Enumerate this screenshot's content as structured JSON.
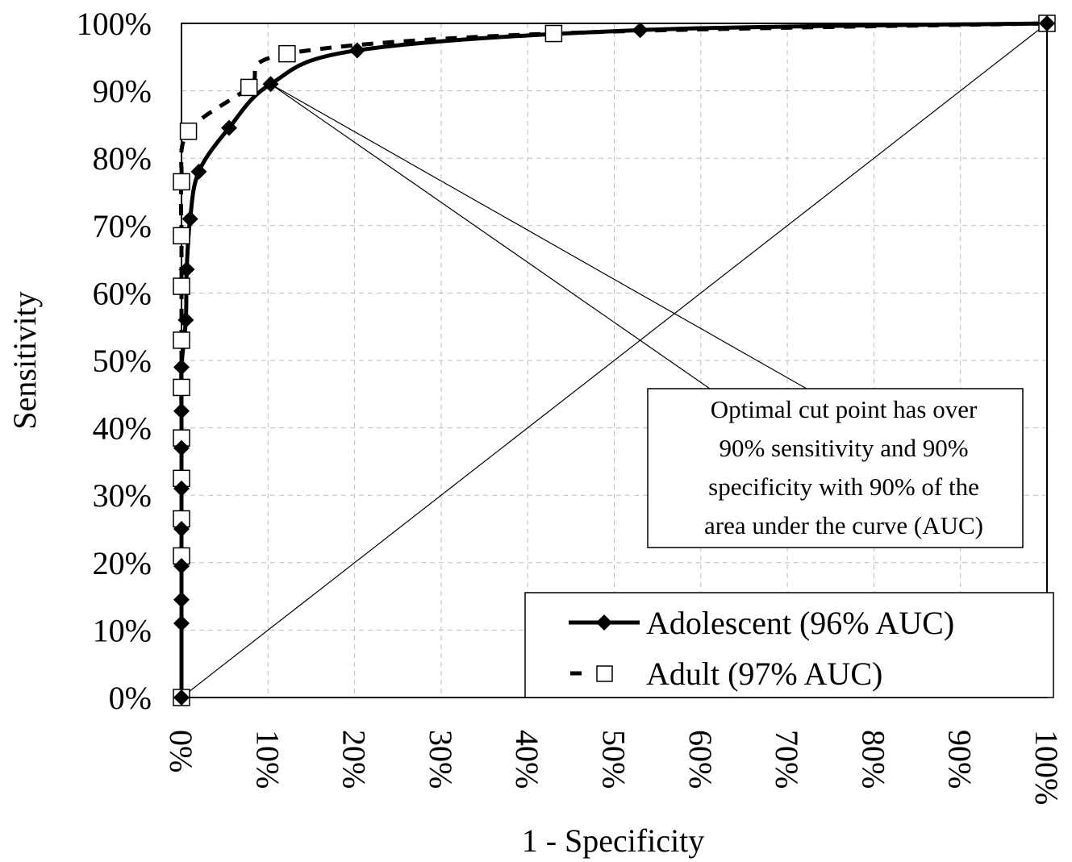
{
  "chart_data": {
    "type": "line",
    "xlabel": "1 - Specificity",
    "ylabel": "Sensitivity",
    "xlim": [
      0,
      100
    ],
    "ylim": [
      0,
      100
    ],
    "x_ticks": [
      "0%",
      "10%",
      "20%",
      "30%",
      "40%",
      "50%",
      "60%",
      "70%",
      "80%",
      "90%",
      "100%"
    ],
    "y_ticks": [
      "0%",
      "10%",
      "20%",
      "30%",
      "40%",
      "50%",
      "60%",
      "70%",
      "80%",
      "90%",
      "100%"
    ],
    "grid": true,
    "legend_position": "bottom-right",
    "series": [
      {
        "name": "Adolescent (96% AUC)",
        "style": "solid",
        "marker": "diamond-filled",
        "color": "#000000",
        "points": [
          [
            0,
            0
          ],
          [
            0,
            11
          ],
          [
            0,
            14.5
          ],
          [
            0,
            19.5
          ],
          [
            0,
            25
          ],
          [
            0,
            31
          ],
          [
            0,
            37
          ],
          [
            0,
            42.5
          ],
          [
            0,
            49
          ],
          [
            0.5,
            56
          ],
          [
            0.6,
            63.5
          ],
          [
            1,
            71
          ],
          [
            2,
            78
          ],
          [
            5.5,
            84.5
          ],
          [
            10.3,
            91
          ],
          [
            20.3,
            96
          ],
          [
            53,
            99
          ],
          [
            100,
            100
          ]
        ]
      },
      {
        "name": "Adult (97% AUC)",
        "style": "dashed",
        "marker": "square-open",
        "color": "#000000",
        "points": [
          [
            0,
            0
          ],
          [
            0,
            21
          ],
          [
            0,
            26.5
          ],
          [
            0,
            32.5
          ],
          [
            0,
            38.5
          ],
          [
            0,
            46
          ],
          [
            0,
            53
          ],
          [
            0,
            61
          ],
          [
            0,
            68.5
          ],
          [
            0,
            76.5
          ],
          [
            0.8,
            84
          ],
          [
            7.8,
            90.5
          ],
          [
            12.2,
            95.5
          ],
          [
            43,
            98.5
          ],
          [
            100,
            100
          ]
        ]
      }
    ],
    "reference_line": [
      [
        0,
        0
      ],
      [
        100,
        100
      ]
    ],
    "annotation": {
      "lines": [
        "Optimal cut point has over",
        "90% sensitivity and 90%",
        "specificity with 90% of the",
        "area under the curve (AUC)"
      ],
      "points_to": [
        10.3,
        91
      ]
    }
  }
}
